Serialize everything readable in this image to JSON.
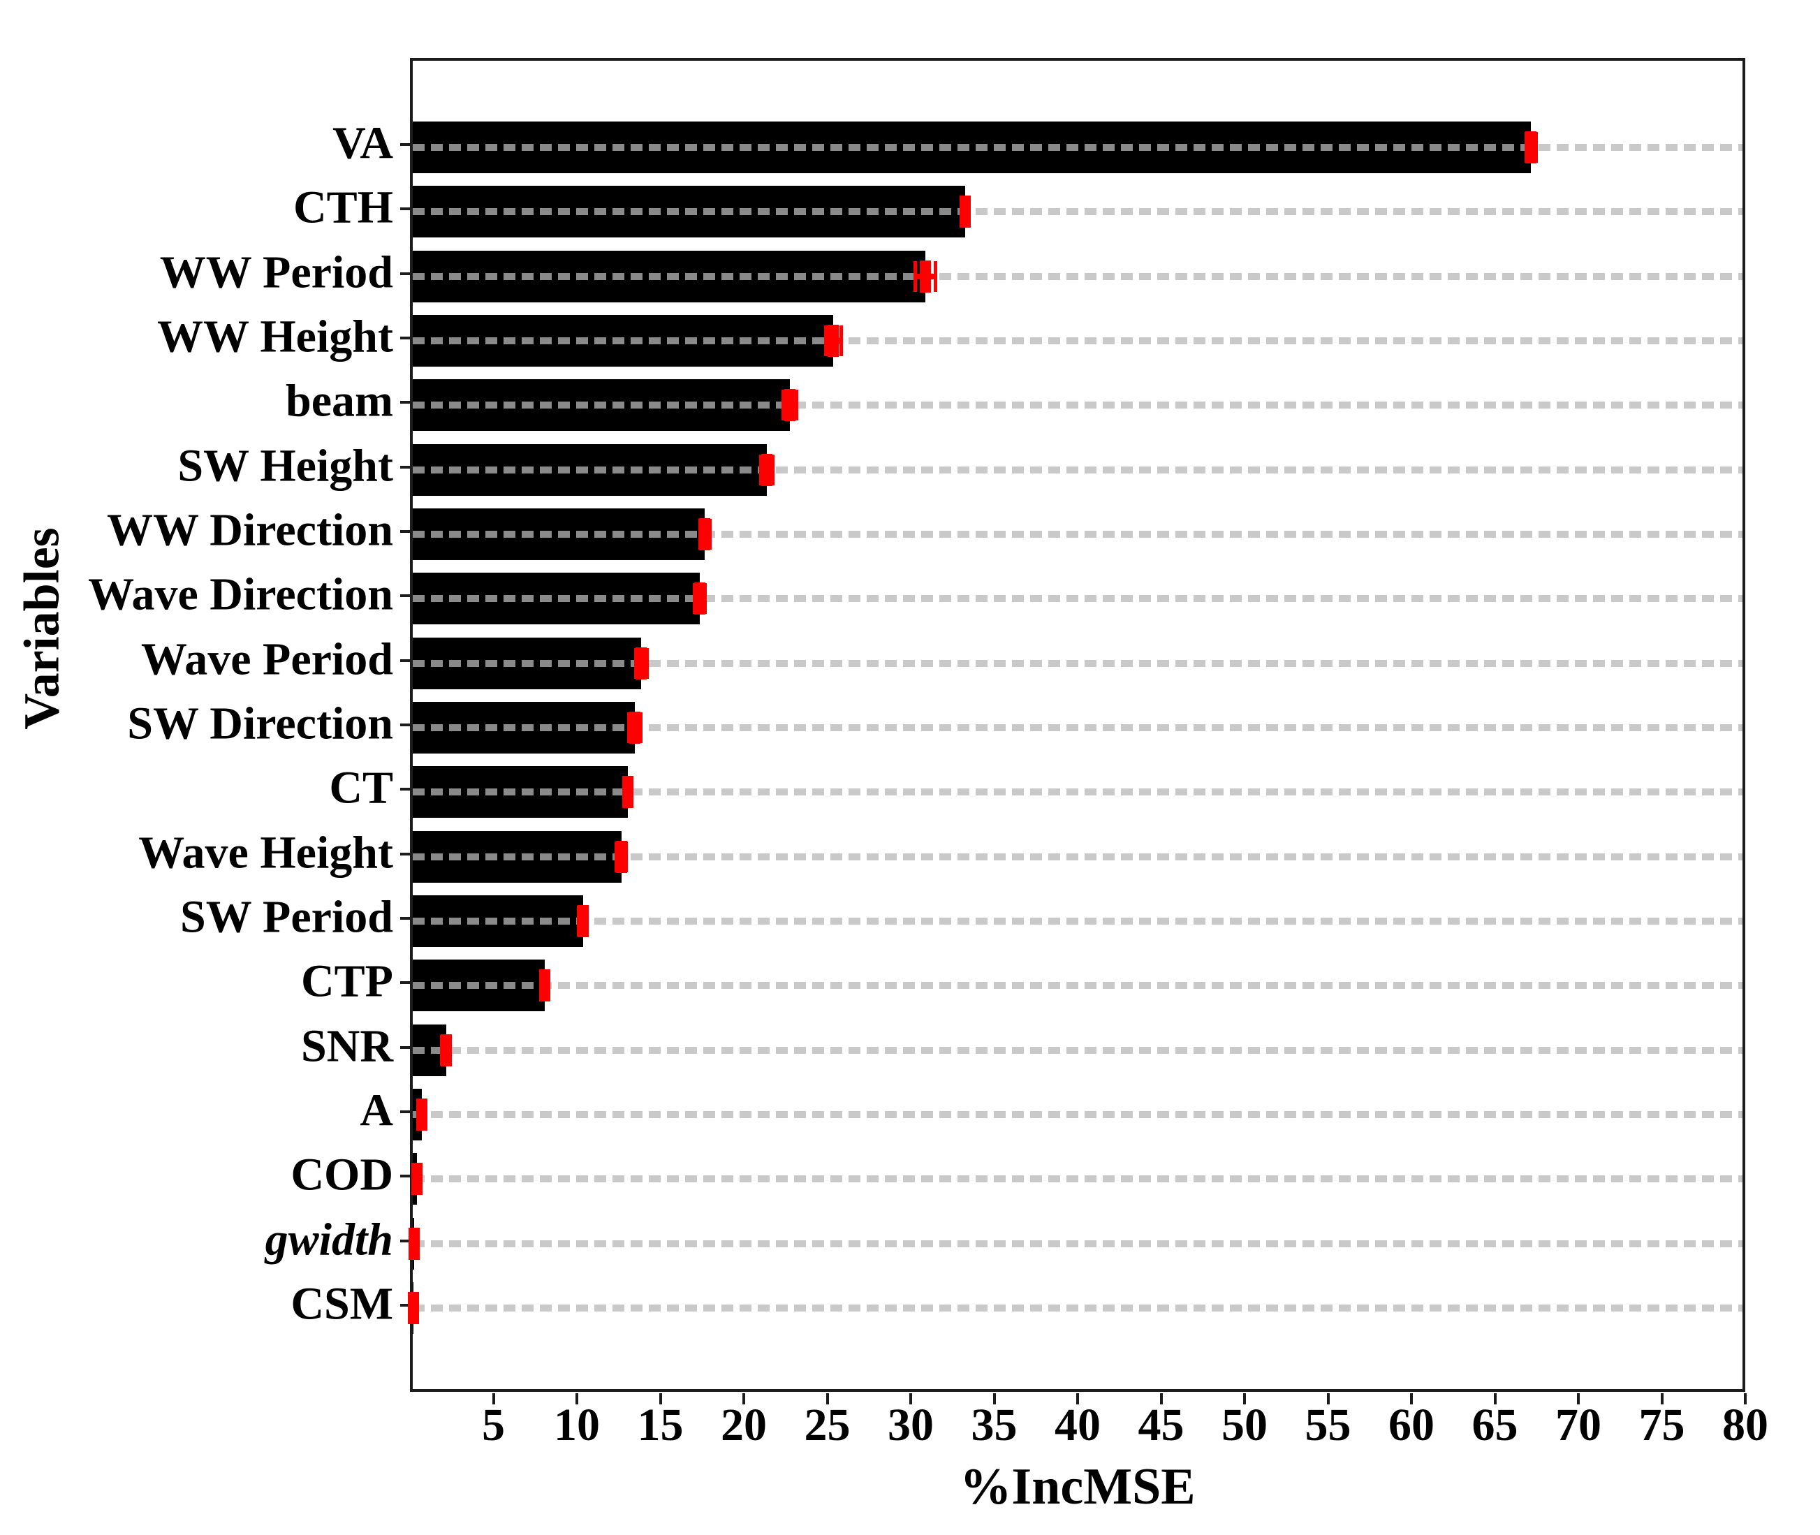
{
  "chart_data": {
    "type": "bar",
    "orientation": "horizontal",
    "title": "",
    "xlabel": "%IncMSE",
    "ylabel": "Variables",
    "xlim": [
      0,
      80
    ],
    "xticks": [
      5,
      10,
      15,
      20,
      25,
      30,
      35,
      40,
      45,
      50,
      55,
      60,
      65,
      70,
      75,
      80
    ],
    "grid": "horizontal dashed lines, one per category",
    "legend_position": "none",
    "categories": [
      "VA",
      "CTH",
      "WW Period",
      "WW Height",
      "beam",
      "SW Height",
      "WW Direction",
      "Wave Direction",
      "Wave Period",
      "SW Direction",
      "CT",
      "Wave Height",
      "SW Period",
      "CTP",
      "SNR",
      "A",
      "COD",
      "gwidth",
      "CSM"
    ],
    "values": [
      67.0,
      33.1,
      30.7,
      25.2,
      22.6,
      21.2,
      17.5,
      17.2,
      13.7,
      13.3,
      12.9,
      12.5,
      10.2,
      7.9,
      2.0,
      0.55,
      0.25,
      0.1,
      0.03
    ],
    "errors": [
      0.3,
      0.2,
      0.6,
      0.45,
      0.4,
      0.35,
      0.3,
      0.3,
      0.35,
      0.35,
      0.1,
      0.3,
      0.25,
      0.15,
      0.25,
      0.2,
      0.2,
      0.1,
      0.03
    ],
    "italic_labels": [
      "gwidth"
    ]
  },
  "colors": {
    "bar": "#000000",
    "error_bar": "#ff0000",
    "grid_on_white": "#c9c9c9",
    "grid_on_bar": "#8a8a8a",
    "axis": "#1c1c1c",
    "background": "#ffffff",
    "text": "#000000"
  }
}
